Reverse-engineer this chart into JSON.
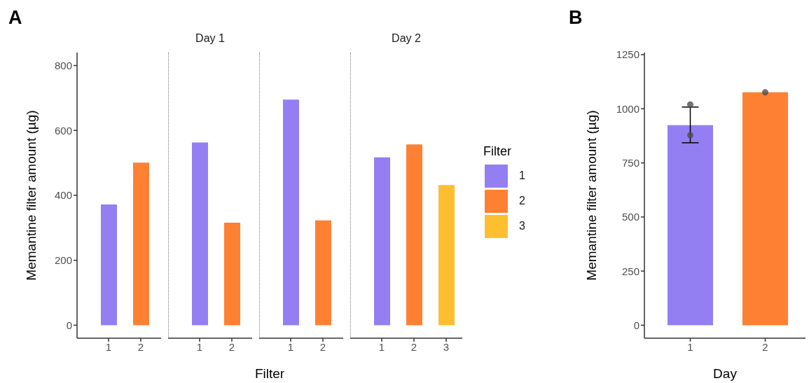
{
  "chart_data": [
    {
      "type": "bar",
      "categories": [
        "1",
        "2"
      ],
      "values": [
        372,
        501
      ],
      "colors": [
        "#937ff2",
        "#fe8033"
      ],
      "ylim": [
        -40,
        840
      ],
      "yticks": [
        0,
        200,
        400,
        600,
        800
      ],
      "ylabel": "Memantine filter amount (µg)",
      "annotations": [
        "A"
      ]
    },
    {
      "type": "bar",
      "title": "Day 1",
      "categories": [
        "1",
        "2"
      ],
      "values": [
        563,
        316
      ],
      "colors": [
        "#937ff2",
        "#fe8033"
      ],
      "ylim": [
        -40,
        840
      ],
      "tick_labels": "x"
    },
    {
      "type": "bar",
      "categories": [
        "1",
        "2"
      ],
      "values": [
        695,
        323
      ],
      "colors": [
        "#937ff2",
        "#fe8033"
      ],
      "ylim": [
        -40,
        840
      ],
      "tick_labels": "x",
      "xlabel": "Filter"
    },
    {
      "type": "bar",
      "title": "Day 2",
      "categories": [
        "1",
        "2",
        "3"
      ],
      "stacked": true,
      "legend": "right",
      "legend_title": "Filter",
      "ylim": [
        -40,
        840
      ],
      "tick_labels": "x",
      "series": [
        {
          "name": "1",
          "color": "#937ff2",
          "values": [
            517,
            null,
            null
          ]
        },
        {
          "name": "2",
          "color": "#fe8033",
          "values": [
            null,
            557,
            null
          ]
        },
        {
          "name": "3",
          "color": "#fdbf2f",
          "values": [
            null,
            null,
            432
          ]
        }
      ]
    },
    {
      "type": "bar",
      "categories": [
        "1",
        "2"
      ],
      "ylim": [
        -60,
        1260
      ],
      "yticks": [
        0,
        250,
        500,
        750,
        1000,
        1250
      ],
      "ylabel": "Memantine filter amount (µg)",
      "xlabel": "Day",
      "annotations": [
        "B"
      ],
      "series": [
        {
          "colors": [
            "#937ff2",
            "#fe8033"
          ],
          "values": [
            924,
            1076
          ],
          "errors": [
            [
              843,
              1008
            ],
            null
          ]
        },
        {
          "type": "scatter",
          "color": "#4d4d4d",
          "x": [
            "1",
            "1",
            "2"
          ],
          "values": [
            1020,
            878,
            1076
          ]
        }
      ]
    }
  ]
}
